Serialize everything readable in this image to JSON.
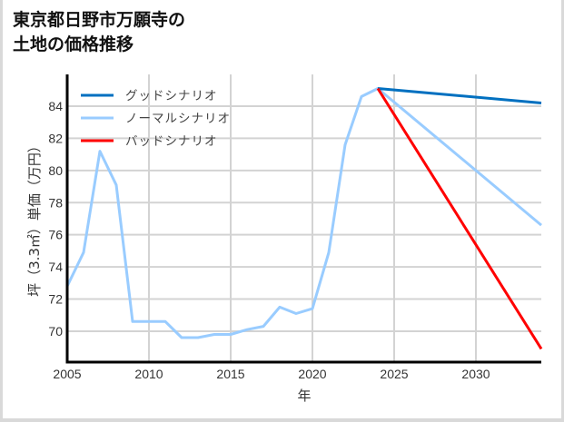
{
  "title_lines": [
    "東京都日野市万願寺の",
    "土地の価格推移"
  ],
  "chart_data": {
    "type": "line",
    "title": "東京都日野市万願寺の土地の価格推移",
    "xlabel": "年",
    "ylabel": "坪（3.3㎡）単価（万円）",
    "xlim": [
      2005,
      2034
    ],
    "ylim": [
      68.2,
      86.5
    ],
    "xticks": [
      2005,
      2010,
      2015,
      2020,
      2025,
      2030
    ],
    "yticks": [
      70,
      72,
      74,
      76,
      78,
      80,
      82,
      84
    ],
    "grid": true,
    "legend_position": "upper left",
    "series": [
      {
        "name": "グッドシナリオ",
        "color": "#0070c0",
        "x": [
          2024,
          2034
        ],
        "values": [
          85.1,
          84.2
        ]
      },
      {
        "name": "ノーマルシナリオ",
        "color": "#99ccff",
        "x": [
          2005,
          2006,
          2007,
          2008,
          2009,
          2010,
          2011,
          2012,
          2013,
          2014,
          2015,
          2016,
          2017,
          2018,
          2019,
          2020,
          2021,
          2022,
          2023,
          2024,
          2034
        ],
        "values": [
          72.8,
          74.9,
          81.2,
          79.1,
          70.6,
          70.6,
          70.6,
          69.6,
          69.6,
          69.8,
          69.8,
          70.1,
          70.3,
          71.5,
          71.1,
          71.4,
          74.9,
          81.6,
          84.6,
          85.1,
          76.6
        ]
      },
      {
        "name": "バッドシナリオ",
        "color": "#ff0000",
        "x": [
          2024,
          2034
        ],
        "values": [
          85.1,
          68.9
        ]
      }
    ]
  }
}
